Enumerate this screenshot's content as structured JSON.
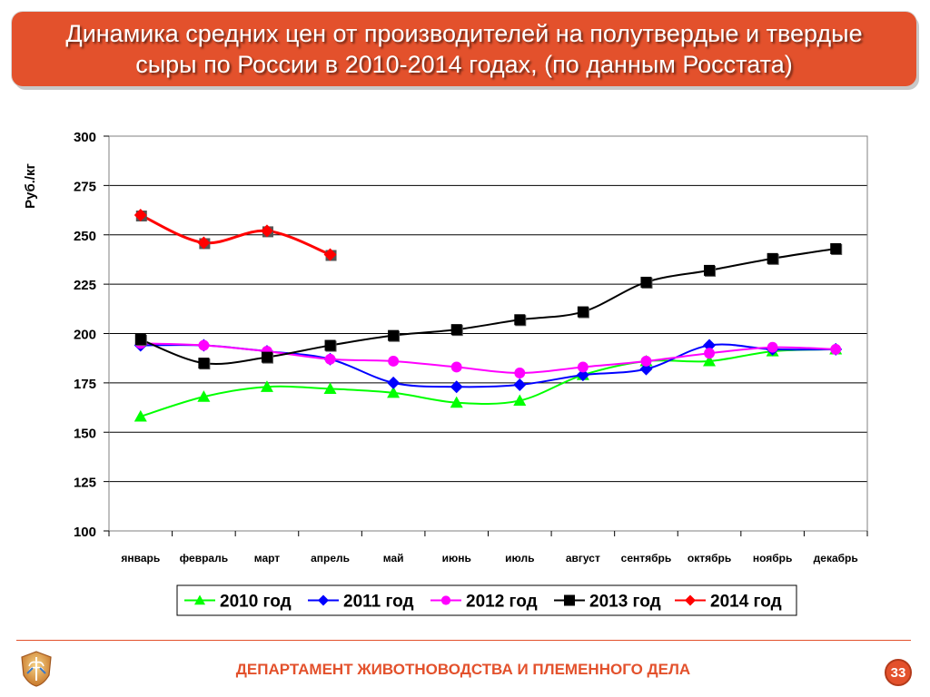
{
  "slide": {
    "title_line1": "Динамика средних цен от производителей на полутвердые и твердые",
    "title_line2": "сыры по России в 2010-2014 годах, (по данным Росстата)",
    "footer": "ДЕПАРТАМЕНТ ЖИВОТНОВОДСТВА И ПЛЕМЕННОГО ДЕЛА",
    "page_number": "33",
    "accent_color": "#e3512c",
    "logo_icon": "wheat-emblem-icon"
  },
  "chart_data": {
    "type": "line",
    "title": "",
    "xlabel": "",
    "ylabel": "Руб./кг",
    "ylim": [
      100,
      300
    ],
    "yticks": [
      100,
      125,
      150,
      175,
      200,
      225,
      250,
      275,
      300
    ],
    "grid": "horizontal",
    "legend_position": "bottom",
    "categories": [
      "январь",
      "февраль",
      "март",
      "апрель",
      "май",
      "июнь",
      "июль",
      "август",
      "сентябрь",
      "октябрь",
      "ноябрь",
      "декабрь"
    ],
    "series": [
      {
        "name": "2010 год",
        "color": "#00ff00",
        "marker": "triangle",
        "values": [
          158,
          168,
          173,
          172,
          170,
          165,
          166,
          179,
          186,
          186,
          191,
          192
        ]
      },
      {
        "name": "2011 год",
        "color": "#0000ff",
        "marker": "diamond",
        "values": [
          194,
          194,
          191,
          187,
          175,
          173,
          174,
          179,
          182,
          194,
          192,
          192
        ]
      },
      {
        "name": "2012 год",
        "color": "#ff00ff",
        "marker": "circle",
        "values": [
          195,
          194,
          191,
          187,
          186,
          183,
          180,
          183,
          186,
          190,
          193,
          192
        ]
      },
      {
        "name": "2013 год",
        "color": "#000000",
        "marker": "square",
        "values": [
          197,
          185,
          188,
          194,
          199,
          202,
          207,
          211,
          226,
          232,
          238,
          243
        ]
      },
      {
        "name": "2014 год",
        "color": "#ff0000",
        "marker": "diamond",
        "values": [
          260,
          246,
          252,
          240,
          null,
          null,
          null,
          null,
          null,
          null,
          null,
          null
        ]
      }
    ]
  }
}
